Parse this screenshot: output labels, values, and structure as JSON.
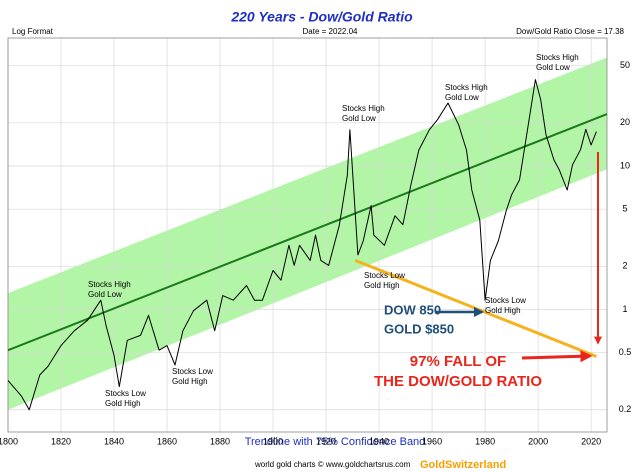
{
  "chart_data": {
    "type": "line",
    "title": "220 Years - Dow/Gold Ratio",
    "header_left": "Log Format",
    "header_center": "Date = 2022.04",
    "header_right": "Dow/Gold Ratio Close = 17.38",
    "caption": "Trendline with 75% Confidence Band",
    "credit": "world gold charts © www.goldchartsrus.com",
    "brand": "GoldSwitzerland",
    "log_scale": true,
    "grid": true,
    "xlim": [
      1800,
      2026
    ],
    "xticks": [
      1800,
      1820,
      1840,
      1860,
      1880,
      1900,
      1920,
      1940,
      1960,
      1980,
      2000,
      2020
    ],
    "ylim": [
      0.14,
      78
    ],
    "yticks": [
      0.2,
      0.5,
      1,
      2,
      5,
      10,
      20,
      50
    ],
    "x": [
      1800,
      1805,
      1808,
      1812,
      1815,
      1820,
      1825,
      1830,
      1835,
      1837,
      1840,
      1842,
      1845,
      1850,
      1853,
      1857,
      1860,
      1863,
      1866,
      1870,
      1875,
      1878,
      1881,
      1885,
      1890,
      1893,
      1896,
      1900,
      1903,
      1906,
      1908,
      1910,
      1914,
      1916,
      1918,
      1921,
      1925,
      1928,
      1929,
      1932,
      1934,
      1937,
      1938,
      1942,
      1946,
      1949,
      1952,
      1955,
      1959,
      1962,
      1966,
      1970,
      1973,
      1975,
      1978,
      1980,
      1982,
      1985,
      1988,
      1990,
      1993,
      1996,
      1999,
      2001,
      2003,
      2006,
      2008,
      2011,
      2013,
      2016,
      2018,
      2020,
      2022
    ],
    "series": [
      {
        "name": "Dow/Gold Ratio",
        "color": "#000000",
        "values": [
          0.32,
          0.25,
          0.2,
          0.35,
          0.4,
          0.56,
          0.71,
          0.84,
          1.16,
          0.77,
          0.48,
          0.29,
          0.61,
          0.66,
          0.91,
          0.52,
          0.56,
          0.41,
          0.71,
          0.98,
          1.16,
          0.71,
          1.25,
          1.16,
          1.47,
          1.16,
          1.16,
          1.87,
          1.6,
          2.8,
          2.03,
          2.8,
          2.2,
          3.3,
          2.2,
          2.03,
          3.86,
          8.6,
          17.9,
          2.4,
          3.0,
          5.3,
          3.3,
          2.8,
          4.5,
          3.9,
          7.4,
          12.9,
          17.9,
          21,
          27.5,
          19.4,
          12.9,
          6.8,
          4.2,
          1.16,
          2.2,
          3.0,
          4.9,
          6.3,
          8,
          17.9,
          40,
          29,
          16.5,
          11,
          9.4,
          6.8,
          10.2,
          13,
          18,
          14,
          17.38
        ]
      }
    ],
    "trend": {
      "color": "#1a7a1a",
      "x": [
        1800,
        2026
      ],
      "values": [
        0.52,
        23
      ],
      "band_upper": [
        1.3,
        57
      ],
      "band_lower": [
        0.2,
        9.5
      ],
      "band_color": "#b2f5a6"
    },
    "projection": {
      "color": "#f5b21c",
      "x": [
        1931,
        2022
      ],
      "values": [
        2.2,
        0.47
      ]
    },
    "annotations": [
      {
        "lines": [
          "Stocks High",
          "Gold Low"
        ]
      },
      {
        "lines": [
          "Stocks Low",
          "Gold High"
        ]
      },
      {
        "lines": [
          "Stocks Low",
          "Gold High"
        ]
      },
      {
        "lines": [
          "Stocks High",
          "Gold Low"
        ]
      },
      {
        "lines": [
          "Stocks Low",
          "Gold High"
        ]
      },
      {
        "lines": [
          "Stocks High",
          "Gold Low"
        ]
      },
      {
        "lines": [
          "Stocks Low",
          "Gold High"
        ]
      },
      {
        "lines": [
          "Stocks High",
          "Gold Low"
        ]
      }
    ],
    "callout": {
      "lines": [
        "DOW 850",
        "GOLD $850"
      ],
      "color": "#1f4e79"
    },
    "fall_note": {
      "lines": [
        "97% FALL OF",
        "THE DOW/GOLD RATIO"
      ],
      "color": "#e8261c"
    }
  }
}
